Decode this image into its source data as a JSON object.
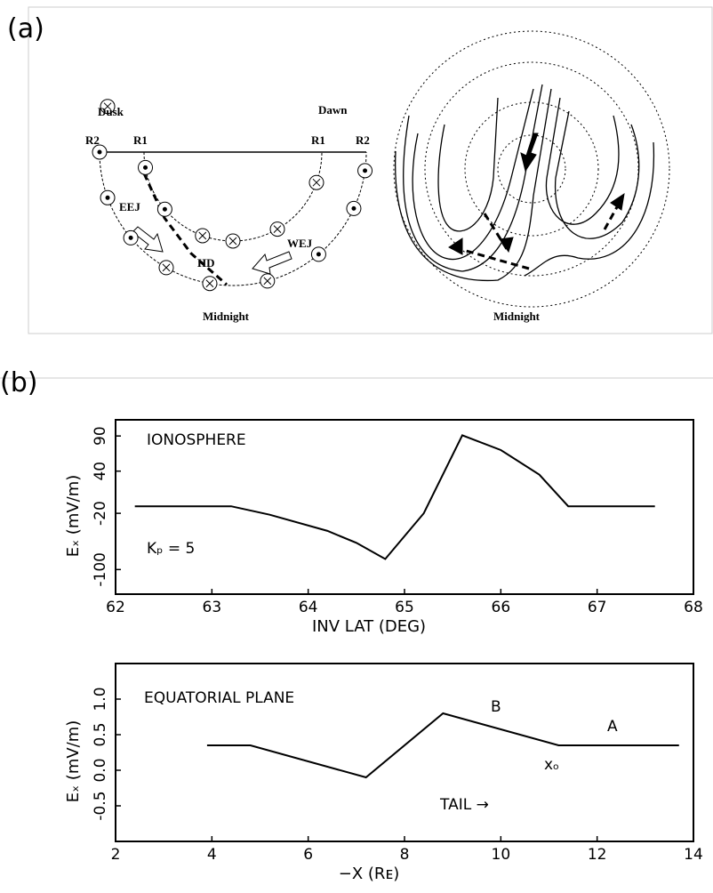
{
  "panel_labels": [
    "(a)",
    "(b)"
  ],
  "diagram": {
    "left": {
      "dusk": "Dusk",
      "dawn": "Dawn",
      "r2_left": "R2",
      "r1_left": "R1",
      "r1_right": "R1",
      "r2_right": "R2",
      "eej": "EEJ",
      "wej": "WEJ",
      "hd": "HD",
      "midnight": "Midnight"
    },
    "right": {
      "midnight": "Midnight"
    }
  },
  "chart_data": [
    {
      "type": "line",
      "x_label": "INV LAT (DEG)",
      "y_label": "Eₓ (mV/m)",
      "annotations": [
        "IONOSPHERE",
        "Kₚ = 5"
      ],
      "x": [
        62.2,
        63.2,
        63.6,
        64.2,
        64.5,
        64.8,
        65.2,
        65.6,
        66.0,
        66.4,
        66.7,
        67.6
      ],
      "series": [
        {
          "color": "#000000",
          "values": [
            -10,
            -10,
            -22,
            -45,
            -62,
            -85,
            -20,
            91,
            70,
            35,
            -10,
            -10
          ]
        }
      ],
      "xlim": [
        62,
        68
      ],
      "xticks": [
        62,
        63,
        64,
        65,
        66,
        67,
        68
      ],
      "ylim": [
        -135,
        113
      ],
      "yticks": [
        90,
        40,
        -20,
        -100
      ]
    },
    {
      "type": "line",
      "x_label": "−X (Rᴇ)",
      "y_label": "Eₓ (mV/m)",
      "annotations": [
        "EQUATORIAL PLANE",
        "B",
        "A",
        "xₒ",
        "TAIL →"
      ],
      "x": [
        3.9,
        4.8,
        7.2,
        8.8,
        11.2,
        13.7
      ],
      "series": [
        {
          "color": "#000000",
          "values": [
            0.35,
            0.35,
            -0.1,
            0.8,
            0.35,
            0.35
          ]
        }
      ],
      "xlim": [
        2,
        14
      ],
      "xticks": [
        2,
        4,
        6,
        8,
        10,
        12,
        14
      ],
      "ylim": [
        -1.0,
        1.5
      ],
      "yticks": [
        {
          "value": 1,
          "label": "1.0"
        },
        0.5,
        {
          "value": 0,
          "label": "0.0"
        },
        -0.5
      ]
    }
  ]
}
